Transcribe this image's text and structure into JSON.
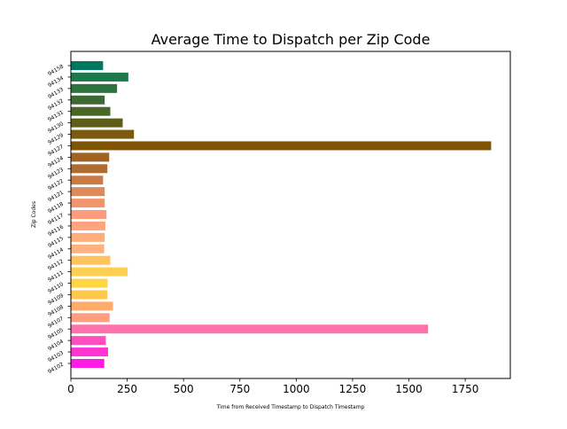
{
  "chart_data": {
    "type": "bar",
    "orientation": "horizontal",
    "title": "Average Time to Dispatch per Zip Code",
    "xlabel": "Time from Received Timestamp to Dispatch Timestamp",
    "ylabel": "Zip Codes",
    "xlim": [
      0,
      1950
    ],
    "xticks": [
      0,
      250,
      500,
      750,
      1000,
      1250,
      1500,
      1750
    ],
    "grid": false,
    "legend": "none",
    "categories": [
      "94102",
      "94103",
      "94104",
      "94105",
      "94107",
      "94108",
      "94109",
      "94110",
      "94111",
      "94112",
      "94114",
      "94115",
      "94116",
      "94117",
      "94118",
      "94121",
      "94122",
      "94123",
      "94124",
      "94127",
      "94129",
      "94130",
      "94131",
      "94132",
      "94133",
      "94134",
      "94158"
    ],
    "values": [
      148,
      165,
      155,
      1585,
      172,
      187,
      162,
      163,
      252,
      175,
      148,
      150,
      153,
      158,
      150,
      150,
      143,
      162,
      170,
      1865,
      280,
      230,
      175,
      150,
      205,
      255,
      143
    ],
    "colors": [
      "#ff1ae6",
      "#ff34d2",
      "#ff4ebe",
      "#ff73ac",
      "#ff9e7e",
      "#ffab6a",
      "#ffc84c",
      "#ffd642",
      "#ffcf52",
      "#ffc35e",
      "#ffb280",
      "#ffae7a",
      "#ffa47c",
      "#fc9c7a",
      "#f2956d",
      "#dc8a5a",
      "#c97b45",
      "#b06c30",
      "#a06322",
      "#7f5503",
      "#7c5a0b",
      "#5e5d18",
      "#4b6727",
      "#3d6a33",
      "#2e7240",
      "#1d794c",
      "#00795f"
    ]
  }
}
